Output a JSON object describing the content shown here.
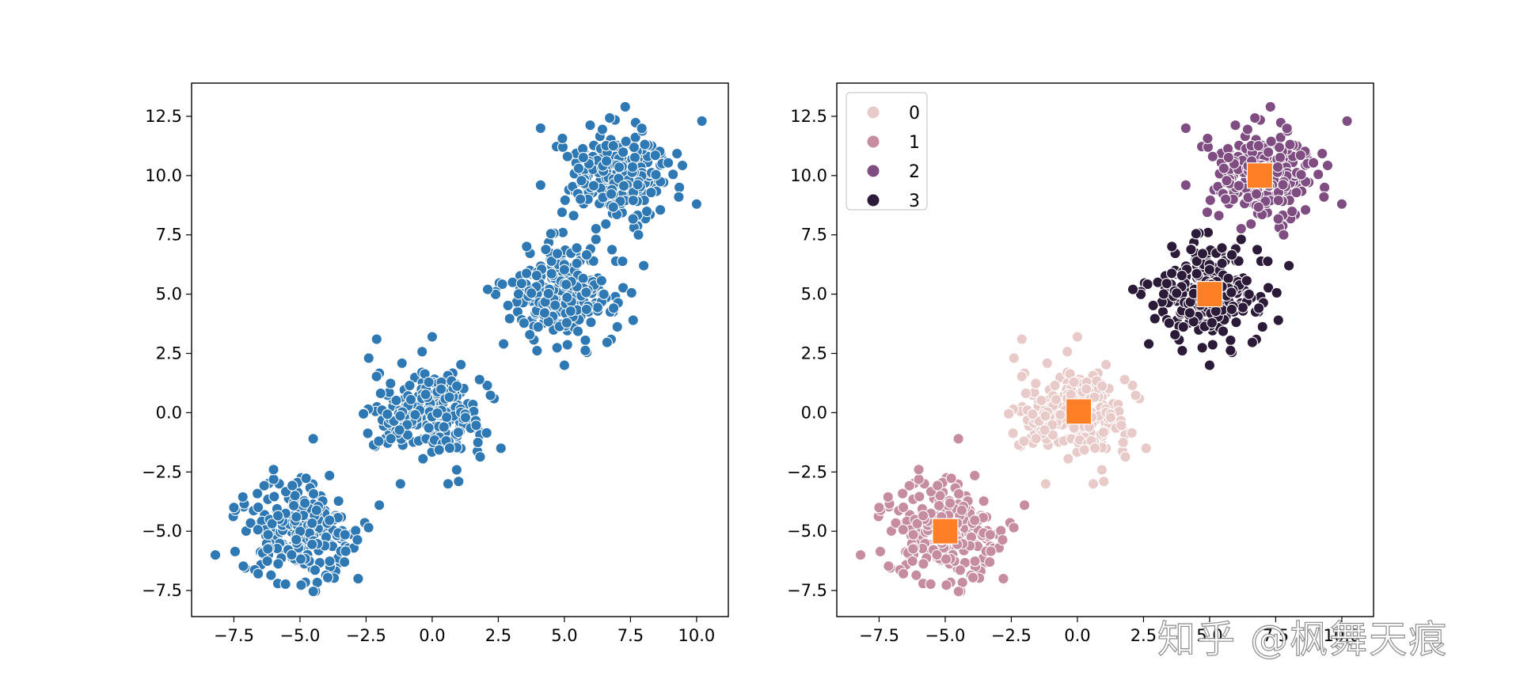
{
  "chart_data": [
    {
      "type": "scatter",
      "title": "",
      "xlabel": "",
      "ylabel": "",
      "xlim": [
        -9.1,
        11.2
      ],
      "ylim": [
        -8.6,
        13.9
      ],
      "xticks": [
        "−7.5",
        "−5.0",
        "−2.5",
        "0.0",
        "2.5",
        "5.0",
        "7.5",
        "10.0"
      ],
      "xtick_values": [
        -7.5,
        -5.0,
        -2.5,
        0.0,
        2.5,
        5.0,
        7.5,
        10.0
      ],
      "yticks": [
        "−7.5",
        "−5.0",
        "−2.5",
        "0.0",
        "2.5",
        "5.0",
        "7.5",
        "10.0",
        "12.5"
      ],
      "ytick_values": [
        -7.5,
        -5.0,
        -2.5,
        0.0,
        2.5,
        5.0,
        7.5,
        10.0,
        12.5
      ],
      "grid": false,
      "legend": null,
      "marker_color": "#2e78b4",
      "marker_edge": "#ffffff",
      "clusters": [
        {
          "center": [
            -5.0,
            -5.0
          ],
          "std": 1.0,
          "n": 250
        },
        {
          "center": [
            0.0,
            0.0
          ],
          "std": 1.0,
          "n": 250
        },
        {
          "center": [
            5.0,
            5.0
          ],
          "std": 1.0,
          "n": 250
        },
        {
          "center": [
            7.0,
            10.0
          ],
          "std": 1.0,
          "n": 250
        }
      ],
      "outliers": [
        [
          -8.2,
          -6.0
        ],
        [
          -7.5,
          -4.0
        ],
        [
          -6.0,
          -2.4
        ],
        [
          -4.5,
          -1.1
        ],
        [
          -2.8,
          -7.0
        ],
        [
          -2.0,
          -3.9
        ],
        [
          -2.4,
          2.3
        ],
        [
          -2.1,
          3.1
        ],
        [
          0.0,
          3.2
        ],
        [
          -1.2,
          -3.0
        ],
        [
          0.6,
          -3.0
        ],
        [
          2.6,
          -1.5
        ],
        [
          1.0,
          -2.9
        ],
        [
          4.1,
          12.0
        ],
        [
          7.3,
          12.9
        ],
        [
          10.2,
          12.3
        ],
        [
          10.0,
          8.8
        ],
        [
          4.1,
          9.6
        ],
        [
          7.8,
          7.5
        ],
        [
          5.0,
          2.0
        ],
        [
          7.6,
          3.9
        ],
        [
          8.0,
          6.2
        ],
        [
          2.7,
          2.9
        ],
        [
          2.1,
          5.2
        ]
      ]
    },
    {
      "type": "scatter",
      "title": "",
      "xlabel": "",
      "ylabel": "",
      "xlim": [
        -9.1,
        11.2
      ],
      "ylim": [
        -8.6,
        13.9
      ],
      "xticks": [
        "−7.5",
        "−5.0",
        "−2.5",
        "0.0",
        "2.5",
        "5.0",
        "7.5",
        "10.0"
      ],
      "xtick_values": [
        -7.5,
        -5.0,
        -2.5,
        0.0,
        2.5,
        5.0,
        7.5,
        10.0
      ],
      "yticks": [
        "−7.5",
        "−5.0",
        "−2.5",
        "0.0",
        "2.5",
        "5.0",
        "7.5",
        "10.0",
        "12.5"
      ],
      "ytick_values": [
        -7.5,
        -5.0,
        -2.5,
        0.0,
        2.5,
        5.0,
        7.5,
        10.0,
        12.5
      ],
      "grid": false,
      "legend": "top-left",
      "marker_edge": "#ffffff",
      "series": [
        {
          "name": "0",
          "color": "#e8cbc9",
          "center": [
            0.0,
            0.0
          ],
          "std": 1.0,
          "n": 250
        },
        {
          "name": "1",
          "color": "#c68c9f",
          "center": [
            -5.0,
            -5.0
          ],
          "std": 1.0,
          "n": 250
        },
        {
          "name": "2",
          "color": "#7f4d81",
          "center": [
            7.0,
            10.0
          ],
          "std": 1.0,
          "n": 250
        },
        {
          "name": "3",
          "color": "#2b1a38",
          "center": [
            5.0,
            5.0
          ],
          "std": 1.0,
          "n": 250
        }
      ],
      "outliers": [
        {
          "series": 1,
          "x": -8.2,
          "y": -6.0
        },
        {
          "series": 1,
          "x": -7.5,
          "y": -4.0
        },
        {
          "series": 1,
          "x": -6.0,
          "y": -2.4
        },
        {
          "series": 1,
          "x": -4.5,
          "y": -1.1
        },
        {
          "series": 1,
          "x": -2.8,
          "y": -7.0
        },
        {
          "series": 1,
          "x": -2.0,
          "y": -3.9
        },
        {
          "series": 0,
          "x": -2.4,
          "y": 2.3
        },
        {
          "series": 0,
          "x": -2.1,
          "y": 3.1
        },
        {
          "series": 0,
          "x": 0.0,
          "y": 3.2
        },
        {
          "series": 0,
          "x": -1.2,
          "y": -3.0
        },
        {
          "series": 0,
          "x": 0.6,
          "y": -3.0
        },
        {
          "series": 0,
          "x": 2.6,
          "y": -1.5
        },
        {
          "series": 0,
          "x": 1.0,
          "y": -2.9
        },
        {
          "series": 2,
          "x": 4.1,
          "y": 12.0
        },
        {
          "series": 2,
          "x": 7.3,
          "y": 12.9
        },
        {
          "series": 2,
          "x": 10.2,
          "y": 12.3
        },
        {
          "series": 2,
          "x": 10.0,
          "y": 8.8
        },
        {
          "series": 2,
          "x": 4.1,
          "y": 9.6
        },
        {
          "series": 2,
          "x": 7.8,
          "y": 7.5
        },
        {
          "series": 3,
          "x": 5.0,
          "y": 2.0
        },
        {
          "series": 3,
          "x": 7.6,
          "y": 3.9
        },
        {
          "series": 3,
          "x": 8.0,
          "y": 6.2
        },
        {
          "series": 3,
          "x": 2.7,
          "y": 2.9
        },
        {
          "series": 3,
          "x": 2.1,
          "y": 5.2
        }
      ],
      "centroids": {
        "color": "#ff7f27",
        "marker": "square",
        "points": [
          [
            0.05,
            0.05
          ],
          [
            -5.0,
            -5.0
          ],
          [
            6.9,
            10.0
          ],
          [
            5.0,
            5.0
          ]
        ]
      }
    }
  ],
  "watermark": "知乎 @枫舞天痕"
}
